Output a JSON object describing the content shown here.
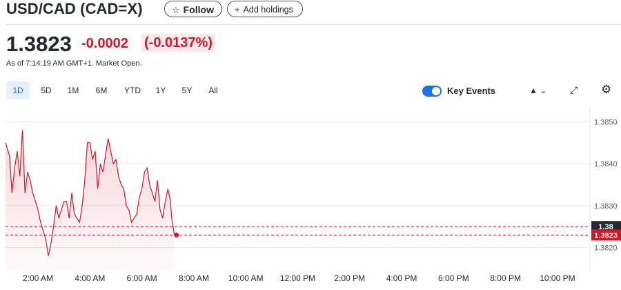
{
  "header": {
    "title": "USD/CAD (CAD=X)",
    "follow_label": "Follow",
    "follow_icon": "star-outline-icon",
    "add_holdings_label": "Add holdings",
    "add_icon": "plus-icon"
  },
  "quote": {
    "price": "1.3823",
    "change": "-0.0002",
    "change_percent": "(-0.0137%)",
    "as_of": "As of 7:14:19 AM GMT+1. Market Open."
  },
  "range_tabs": [
    {
      "label": "1D",
      "active": true
    },
    {
      "label": "5D",
      "active": false
    },
    {
      "label": "1M",
      "active": false
    },
    {
      "label": "6M",
      "active": false
    },
    {
      "label": "YTD",
      "active": false
    },
    {
      "label": "1Y",
      "active": false
    },
    {
      "label": "5Y",
      "active": false
    },
    {
      "label": "All",
      "active": false
    }
  ],
  "toolbar": {
    "key_events_label": "Key Events",
    "key_events_on": true,
    "chart_type_icon": "mountain-chart-icon",
    "chart_type_caret": "chevron-down-icon",
    "expand_icon": "expand-icon",
    "settings_icon": "gear-icon"
  },
  "colors": {
    "accent": "#1a73e8",
    "negative": "#d2172b",
    "line": "#d2172b",
    "text": "#232a31"
  },
  "chart_data": {
    "type": "area",
    "title": "",
    "xlabel": "",
    "ylabel": "",
    "x_ticks": [
      "2:00 AM",
      "4:00 AM",
      "6:00 AM",
      "8:00 AM",
      "10:00 AM",
      "12:00 PM",
      "2:00 PM",
      "4:00 PM",
      "6:00 PM",
      "8:00 PM",
      "10:00 PM"
    ],
    "y_ticks": [
      "1.3850",
      "1.3840",
      "1.3830",
      "1.3820"
    ],
    "ylim": [
      1.38145,
      1.38535
    ],
    "x_range_hours": [
      0.75,
      23.25
    ],
    "grid": true,
    "series": [
      {
        "x": [
          0.75,
          0.9,
          1.0,
          1.1,
          1.2,
          1.3,
          1.4,
          1.5,
          1.6,
          1.7,
          1.8,
          1.9,
          2.0,
          2.1,
          2.2,
          2.3,
          2.4,
          2.5,
          2.6,
          2.7,
          2.8,
          2.9,
          3.0,
          3.1,
          3.2,
          3.3,
          3.4,
          3.5,
          3.6,
          3.7,
          3.8,
          3.9,
          4.0,
          4.1,
          4.2,
          4.3,
          4.4,
          4.5,
          4.6,
          4.7,
          4.8,
          4.9,
          5.0,
          5.1,
          5.2,
          5.3,
          5.4,
          5.5,
          5.6,
          5.7,
          5.8,
          5.9,
          6.0,
          6.1,
          6.2,
          6.3,
          6.4,
          6.5,
          6.6,
          6.7,
          6.8,
          6.9,
          7.0,
          7.1,
          7.15,
          7.25
        ],
        "y": [
          1.3845,
          1.3842,
          1.3833,
          1.3839,
          1.3843,
          1.3837,
          1.3848,
          1.3833,
          1.3838,
          1.3836,
          1.3833,
          1.3831,
          1.3829,
          1.3826,
          1.3824,
          1.3822,
          1.3818,
          1.3821,
          1.3825,
          1.383,
          1.3827,
          1.3829,
          1.3831,
          1.3831,
          1.3827,
          1.3833,
          1.3828,
          1.3827,
          1.3826,
          1.383,
          1.3836,
          1.3845,
          1.3845,
          1.3841,
          1.3843,
          1.3834,
          1.384,
          1.3838,
          1.3842,
          1.3846,
          1.3843,
          1.384,
          1.3841,
          1.3837,
          1.3835,
          1.3834,
          1.383,
          1.3829,
          1.3826,
          1.3827,
          1.3828,
          1.3832,
          1.3834,
          1.3838,
          1.3839,
          1.3835,
          1.3833,
          1.3831,
          1.3836,
          1.3829,
          1.3827,
          1.3831,
          1.3834,
          1.3831,
          1.3827,
          1.3823
        ]
      }
    ],
    "reference_lines": [
      {
        "label": "1.38",
        "value": 1.3825
      },
      {
        "label": "1.3823",
        "value": 1.3823
      }
    ],
    "last_value": 1.3823
  }
}
